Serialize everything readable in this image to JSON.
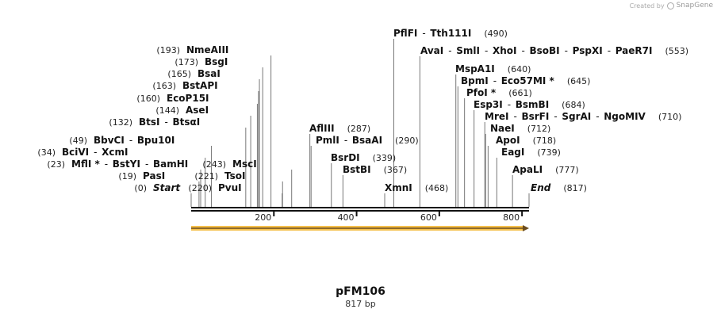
{
  "credit": {
    "prefix": "Created by",
    "brand": "SnapGene"
  },
  "plasmid": {
    "name": "pFM106",
    "length_label": "817 bp",
    "length": 817
  },
  "axis": {
    "ticks": [
      "200",
      "400",
      "600",
      "800"
    ],
    "tick_values": [
      200,
      400,
      600,
      800
    ]
  },
  "colors": {
    "feature": "#f5c04a",
    "feature_edge": "#c8922a",
    "arrow": "#6b4c1f",
    "line": "#111111"
  },
  "sites": [
    {
      "names": [
        "Start"
      ],
      "pos": 0,
      "pos_label": "(0)",
      "italic": true
    },
    {
      "names": [
        "PasI"
      ],
      "pos": 19,
      "pos_label": "(19)"
    },
    {
      "names": [
        "MflI *",
        "BstYI",
        "BamHI"
      ],
      "pos": 23,
      "pos_label": "(23)"
    },
    {
      "names": [
        "BciVI",
        "XcmI"
      ],
      "pos": 34,
      "pos_label": "(34)"
    },
    {
      "names": [
        "BbvCI",
        "Bpu10I"
      ],
      "pos": 49,
      "pos_label": "(49)"
    },
    {
      "names": [
        "BtsI",
        "BtsαI"
      ],
      "pos": 132,
      "pos_label": "(132)"
    },
    {
      "names": [
        "AseI"
      ],
      "pos": 144,
      "pos_label": "(144)"
    },
    {
      "names": [
        "EcoP15I"
      ],
      "pos": 160,
      "pos_label": "(160)"
    },
    {
      "names": [
        "BstAPI"
      ],
      "pos": 163,
      "pos_label": "(163)"
    },
    {
      "names": [
        "BsaI"
      ],
      "pos": 165,
      "pos_label": "(165)"
    },
    {
      "names": [
        "BsgI"
      ],
      "pos": 173,
      "pos_label": "(173)"
    },
    {
      "names": [
        "NmeAIII"
      ],
      "pos": 193,
      "pos_label": "(193)"
    },
    {
      "names": [
        "PvuI"
      ],
      "pos": 220,
      "pos_label": "(220)"
    },
    {
      "names": [
        "TsoI"
      ],
      "pos": 221,
      "pos_label": "(221)"
    },
    {
      "names": [
        "MscI"
      ],
      "pos": 243,
      "pos_label": "(243)"
    },
    {
      "names": [
        "AflIII"
      ],
      "pos": 287,
      "pos_label": "(287)"
    },
    {
      "names": [
        "PmlI",
        "BsaAI"
      ],
      "pos": 290,
      "pos_label": "(290)"
    },
    {
      "names": [
        "BsrDI"
      ],
      "pos": 339,
      "pos_label": "(339)"
    },
    {
      "names": [
        "BstBI"
      ],
      "pos": 367,
      "pos_label": "(367)"
    },
    {
      "names": [
        "XmnI"
      ],
      "pos": 468,
      "pos_label": "(468)"
    },
    {
      "names": [
        "PflFI",
        "Tth111I"
      ],
      "pos": 490,
      "pos_label": "(490)"
    },
    {
      "names": [
        "AvaI",
        "SmlI",
        "XhoI",
        "BsoBI",
        "PspXI",
        "PaeR7I"
      ],
      "pos": 553,
      "pos_label": "(553)"
    },
    {
      "names": [
        "MspA1I"
      ],
      "pos": 640,
      "pos_label": "(640)"
    },
    {
      "names": [
        "BpmI",
        "Eco57MI *"
      ],
      "pos": 645,
      "pos_label": "(645)"
    },
    {
      "names": [
        "PfoI *"
      ],
      "pos": 661,
      "pos_label": "(661)"
    },
    {
      "names": [
        "Esp3I",
        "BsmBI"
      ],
      "pos": 684,
      "pos_label": "(684)"
    },
    {
      "names": [
        "MreI",
        "BsrFI",
        "SgrAI",
        "NgoMIV"
      ],
      "pos": 710,
      "pos_label": "(710)"
    },
    {
      "names": [
        "NaeI"
      ],
      "pos": 712,
      "pos_label": "(712)"
    },
    {
      "names": [
        "ApoI"
      ],
      "pos": 718,
      "pos_label": "(718)"
    },
    {
      "names": [
        "EagI"
      ],
      "pos": 739,
      "pos_label": "(739)"
    },
    {
      "names": [
        "ApaLI"
      ],
      "pos": 777,
      "pos_label": "(777)"
    },
    {
      "names": [
        "End"
      ],
      "pos": 817,
      "pos_label": "(817)",
      "italic": true
    }
  ]
}
